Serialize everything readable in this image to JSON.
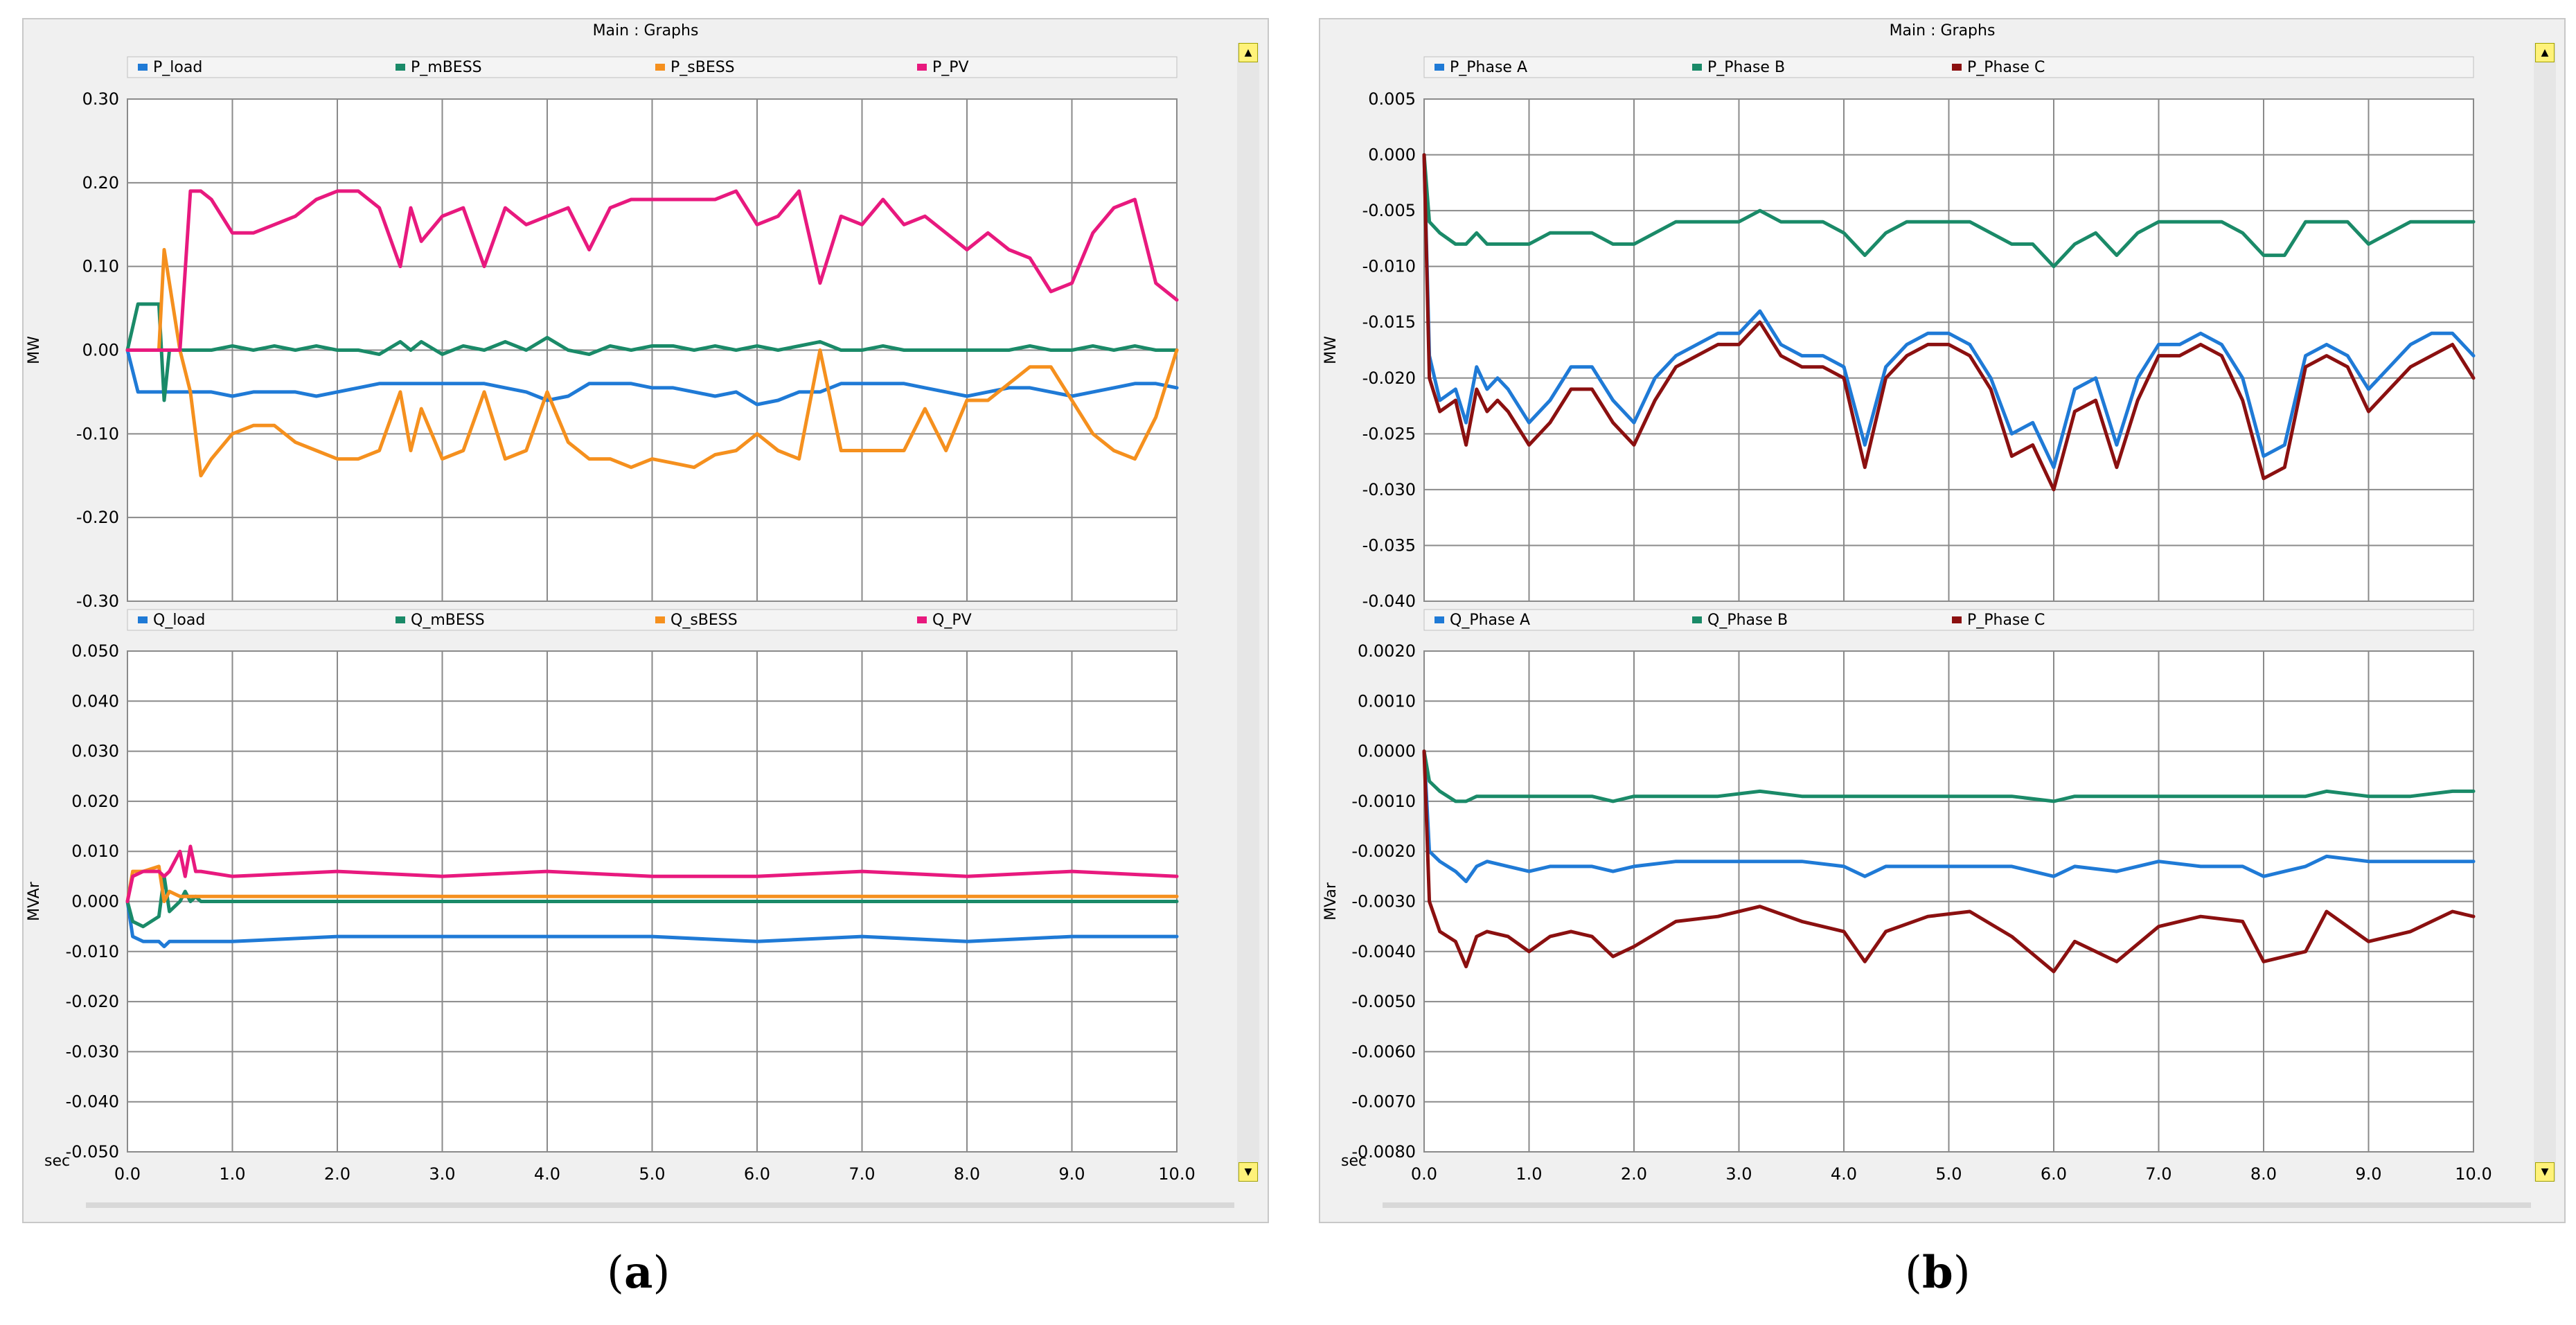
{
  "panels": [
    {
      "window_title": "Main : Graphs",
      "caption_open": "(",
      "caption_letter": "a",
      "caption_close": ")"
    },
    {
      "window_title": "Main : Graphs",
      "caption_open": "(",
      "caption_letter": "b",
      "caption_close": ")"
    }
  ],
  "chart_data": [
    {
      "panel": "a",
      "type": "line",
      "title": "",
      "ylabel": "MW",
      "xlabel": "sec",
      "xlim": [
        0,
        10
      ],
      "x_ticks": [
        "0.0",
        "1.0",
        "2.0",
        "3.0",
        "4.0",
        "5.0",
        "6.0",
        "7.0",
        "8.0",
        "9.0",
        "10.0"
      ],
      "ylim": [
        -0.3,
        0.3
      ],
      "y_ticks": [
        "0.30",
        "0.20",
        "0.10",
        "0.00",
        "-0.10",
        "-0.20",
        "-0.30"
      ],
      "grid": true,
      "x": [
        0.0,
        0.1,
        0.2,
        0.3,
        0.35,
        0.4,
        0.5,
        0.6,
        0.7,
        0.8,
        1.0,
        1.2,
        1.4,
        1.6,
        1.8,
        2.0,
        2.2,
        2.4,
        2.6,
        2.7,
        2.8,
        3.0,
        3.2,
        3.4,
        3.6,
        3.8,
        4.0,
        4.2,
        4.4,
        4.6,
        4.8,
        5.0,
        5.2,
        5.4,
        5.6,
        5.8,
        6.0,
        6.2,
        6.4,
        6.6,
        6.8,
        7.0,
        7.2,
        7.4,
        7.6,
        7.8,
        8.0,
        8.2,
        8.4,
        8.6,
        8.8,
        9.0,
        9.2,
        9.4,
        9.6,
        9.8,
        10.0
      ],
      "series": [
        {
          "name": "P_load",
          "color": "#1f7ad6",
          "values": [
            0.0,
            -0.05,
            -0.05,
            -0.05,
            -0.05,
            -0.05,
            -0.05,
            -0.05,
            -0.05,
            -0.05,
            -0.055,
            -0.05,
            -0.05,
            -0.05,
            -0.055,
            -0.05,
            -0.045,
            -0.04,
            -0.04,
            -0.04,
            -0.04,
            -0.04,
            -0.04,
            -0.04,
            -0.045,
            -0.05,
            -0.06,
            -0.055,
            -0.04,
            -0.04,
            -0.04,
            -0.045,
            -0.045,
            -0.05,
            -0.055,
            -0.05,
            -0.065,
            -0.06,
            -0.05,
            -0.05,
            -0.04,
            -0.04,
            -0.04,
            -0.04,
            -0.045,
            -0.05,
            -0.055,
            -0.05,
            -0.045,
            -0.045,
            -0.05,
            -0.055,
            -0.05,
            -0.045,
            -0.04,
            -0.04,
            -0.045
          ]
        },
        {
          "name": "P_mBESS",
          "color": "#1a8a68",
          "values": [
            0.0,
            0.055,
            0.055,
            0.055,
            -0.06,
            0.0,
            0.0,
            0.0,
            0.0,
            0.0,
            0.005,
            0.0,
            0.005,
            0.0,
            0.005,
            0.0,
            0.0,
            -0.005,
            0.01,
            0.0,
            0.01,
            -0.005,
            0.005,
            0.0,
            0.01,
            0.0,
            0.015,
            0.0,
            -0.005,
            0.005,
            0.0,
            0.005,
            0.005,
            0.0,
            0.005,
            0.0,
            0.005,
            0.0,
            0.005,
            0.01,
            0.0,
            0.0,
            0.005,
            0.0,
            0.0,
            0.0,
            0.0,
            0.0,
            0.0,
            0.005,
            0.0,
            0.0,
            0.005,
            0.0,
            0.005,
            0.0,
            0.0
          ]
        },
        {
          "name": "P_sBESS",
          "color": "#f5901e",
          "values": [
            0.0,
            0.0,
            0.0,
            0.0,
            0.12,
            0.08,
            0.0,
            -0.05,
            -0.15,
            -0.13,
            -0.1,
            -0.09,
            -0.09,
            -0.11,
            -0.12,
            -0.13,
            -0.13,
            -0.12,
            -0.05,
            -0.12,
            -0.07,
            -0.13,
            -0.12,
            -0.05,
            -0.13,
            -0.12,
            -0.05,
            -0.11,
            -0.13,
            -0.13,
            -0.14,
            -0.13,
            -0.135,
            -0.14,
            -0.125,
            -0.12,
            -0.1,
            -0.12,
            -0.13,
            0.0,
            -0.12,
            -0.12,
            -0.12,
            -0.12,
            -0.07,
            -0.12,
            -0.06,
            -0.06,
            -0.04,
            -0.02,
            -0.02,
            -0.06,
            -0.1,
            -0.12,
            -0.13,
            -0.08,
            0.0
          ]
        },
        {
          "name": "P_PV",
          "color": "#e8197e",
          "values": [
            0.0,
            0.0,
            0.0,
            0.0,
            0.0,
            0.0,
            0.0,
            0.19,
            0.19,
            0.18,
            0.14,
            0.14,
            0.15,
            0.16,
            0.18,
            0.19,
            0.19,
            0.17,
            0.1,
            0.17,
            0.13,
            0.16,
            0.17,
            0.1,
            0.17,
            0.15,
            0.16,
            0.17,
            0.12,
            0.17,
            0.18,
            0.18,
            0.18,
            0.18,
            0.18,
            0.19,
            0.15,
            0.16,
            0.19,
            0.08,
            0.16,
            0.15,
            0.18,
            0.15,
            0.16,
            0.14,
            0.12,
            0.14,
            0.12,
            0.11,
            0.07,
            0.08,
            0.14,
            0.17,
            0.18,
            0.08,
            0.06
          ]
        }
      ]
    },
    {
      "panel": "a",
      "type": "line",
      "title": "",
      "ylabel": "MVAr",
      "xlabel": "sec",
      "xlim": [
        0,
        10
      ],
      "x_ticks": [
        "0.0",
        "1.0",
        "2.0",
        "3.0",
        "4.0",
        "5.0",
        "6.0",
        "7.0",
        "8.0",
        "9.0",
        "10.0"
      ],
      "ylim": [
        -0.05,
        0.05
      ],
      "y_ticks": [
        "0.050",
        "0.040",
        "0.030",
        "0.020",
        "0.010",
        "0.000",
        "-0.010",
        "-0.020",
        "-0.030",
        "-0.040",
        "-0.050"
      ],
      "grid": true,
      "x": [
        0.0,
        0.05,
        0.15,
        0.3,
        0.35,
        0.4,
        0.5,
        0.55,
        0.6,
        0.65,
        0.7,
        1.0,
        2.0,
        3.0,
        4.0,
        5.0,
        6.0,
        7.0,
        8.0,
        9.0,
        10.0
      ],
      "series": [
        {
          "name": "Q_load",
          "color": "#1f7ad6",
          "values": [
            0.0,
            -0.007,
            -0.008,
            -0.008,
            -0.009,
            -0.008,
            -0.008,
            -0.008,
            -0.008,
            -0.008,
            -0.008,
            -0.008,
            -0.007,
            -0.007,
            -0.007,
            -0.007,
            -0.008,
            -0.007,
            -0.008,
            -0.007,
            -0.007
          ]
        },
        {
          "name": "Q_mBESS",
          "color": "#1a8a68",
          "values": [
            0.0,
            -0.004,
            -0.005,
            -0.003,
            0.005,
            -0.002,
            0.0,
            0.002,
            0.0,
            0.001,
            0.0,
            0.0,
            0.0,
            0.0,
            0.0,
            0.0,
            0.0,
            0.0,
            0.0,
            0.0,
            0.0
          ]
        },
        {
          "name": "Q_sBESS",
          "color": "#f5901e",
          "values": [
            0.0,
            0.006,
            0.006,
            0.007,
            0.0,
            0.002,
            0.001,
            0.001,
            0.001,
            0.001,
            0.001,
            0.001,
            0.001,
            0.001,
            0.001,
            0.001,
            0.001,
            0.001,
            0.001,
            0.001,
            0.001
          ]
        },
        {
          "name": "Q_PV",
          "color": "#e8197e",
          "values": [
            0.0,
            0.005,
            0.006,
            0.006,
            0.005,
            0.006,
            0.01,
            0.005,
            0.011,
            0.006,
            0.006,
            0.005,
            0.006,
            0.005,
            0.006,
            0.005,
            0.005,
            0.006,
            0.005,
            0.006,
            0.005
          ]
        }
      ]
    },
    {
      "panel": "b",
      "type": "line",
      "title": "",
      "ylabel": "MW",
      "xlabel": "sec",
      "xlim": [
        0,
        10
      ],
      "x_ticks": [
        "0.0",
        "1.0",
        "2.0",
        "3.0",
        "4.0",
        "5.0",
        "6.0",
        "7.0",
        "8.0",
        "9.0",
        "10.0"
      ],
      "ylim": [
        -0.04,
        0.005
      ],
      "y_ticks": [
        "0.005",
        "0.000",
        "-0.005",
        "-0.010",
        "-0.015",
        "-0.020",
        "-0.025",
        "-0.030",
        "-0.035",
        "-0.040"
      ],
      "grid": true,
      "x": [
        0.0,
        0.05,
        0.15,
        0.3,
        0.4,
        0.5,
        0.6,
        0.7,
        0.8,
        1.0,
        1.2,
        1.4,
        1.6,
        1.8,
        2.0,
        2.2,
        2.4,
        2.6,
        2.8,
        3.0,
        3.2,
        3.4,
        3.6,
        3.8,
        4.0,
        4.2,
        4.4,
        4.6,
        4.8,
        5.0,
        5.2,
        5.4,
        5.6,
        5.8,
        6.0,
        6.2,
        6.4,
        6.6,
        6.8,
        7.0,
        7.2,
        7.4,
        7.6,
        7.8,
        8.0,
        8.2,
        8.4,
        8.6,
        8.8,
        9.0,
        9.2,
        9.4,
        9.6,
        9.8,
        10.0
      ],
      "series": [
        {
          "name": "P_Phase A",
          "color": "#1f7ad6",
          "values": [
            0.0,
            -0.018,
            -0.022,
            -0.021,
            -0.024,
            -0.019,
            -0.021,
            -0.02,
            -0.021,
            -0.024,
            -0.022,
            -0.019,
            -0.019,
            -0.022,
            -0.024,
            -0.02,
            -0.018,
            -0.017,
            -0.016,
            -0.016,
            -0.014,
            -0.017,
            -0.018,
            -0.018,
            -0.019,
            -0.026,
            -0.019,
            -0.017,
            -0.016,
            -0.016,
            -0.017,
            -0.02,
            -0.025,
            -0.024,
            -0.028,
            -0.021,
            -0.02,
            -0.026,
            -0.02,
            -0.017,
            -0.017,
            -0.016,
            -0.017,
            -0.02,
            -0.027,
            -0.026,
            -0.018,
            -0.017,
            -0.018,
            -0.021,
            -0.019,
            -0.017,
            -0.016,
            -0.016,
            -0.018
          ]
        },
        {
          "name": "P_Phase B",
          "color": "#1a8a68",
          "values": [
            0.0,
            -0.006,
            -0.007,
            -0.008,
            -0.008,
            -0.007,
            -0.008,
            -0.008,
            -0.008,
            -0.008,
            -0.007,
            -0.007,
            -0.007,
            -0.008,
            -0.008,
            -0.007,
            -0.006,
            -0.006,
            -0.006,
            -0.006,
            -0.005,
            -0.006,
            -0.006,
            -0.006,
            -0.007,
            -0.009,
            -0.007,
            -0.006,
            -0.006,
            -0.006,
            -0.006,
            -0.007,
            -0.008,
            -0.008,
            -0.01,
            -0.008,
            -0.007,
            -0.009,
            -0.007,
            -0.006,
            -0.006,
            -0.006,
            -0.006,
            -0.007,
            -0.009,
            -0.009,
            -0.006,
            -0.006,
            -0.006,
            -0.008,
            -0.007,
            -0.006,
            -0.006,
            -0.006,
            -0.006
          ]
        },
        {
          "name": "P_Phase C",
          "color": "#8b1010",
          "values": [
            0.0,
            -0.02,
            -0.023,
            -0.022,
            -0.026,
            -0.021,
            -0.023,
            -0.022,
            -0.023,
            -0.026,
            -0.024,
            -0.021,
            -0.021,
            -0.024,
            -0.026,
            -0.022,
            -0.019,
            -0.018,
            -0.017,
            -0.017,
            -0.015,
            -0.018,
            -0.019,
            -0.019,
            -0.02,
            -0.028,
            -0.02,
            -0.018,
            -0.017,
            -0.017,
            -0.018,
            -0.021,
            -0.027,
            -0.026,
            -0.03,
            -0.023,
            -0.022,
            -0.028,
            -0.022,
            -0.018,
            -0.018,
            -0.017,
            -0.018,
            -0.022,
            -0.029,
            -0.028,
            -0.019,
            -0.018,
            -0.019,
            -0.023,
            -0.021,
            -0.019,
            -0.018,
            -0.017,
            -0.02
          ]
        }
      ]
    },
    {
      "panel": "b",
      "type": "line",
      "title": "",
      "ylabel": "MVar",
      "xlabel": "sec",
      "xlim": [
        0,
        10
      ],
      "x_ticks": [
        "0.0",
        "1.0",
        "2.0",
        "3.0",
        "4.0",
        "5.0",
        "6.0",
        "7.0",
        "8.0",
        "9.0",
        "10.0"
      ],
      "ylim": [
        -0.008,
        0.002
      ],
      "y_ticks": [
        "0.0020",
        "0.0010",
        "0.0000",
        "-0.0010",
        "-0.0020",
        "-0.0030",
        "-0.0040",
        "-0.0050",
        "-0.0060",
        "-0.0070",
        "-0.0080"
      ],
      "grid": true,
      "x": [
        0.0,
        0.05,
        0.15,
        0.3,
        0.4,
        0.5,
        0.6,
        0.8,
        1.0,
        1.2,
        1.4,
        1.6,
        1.8,
        2.0,
        2.4,
        2.8,
        3.2,
        3.6,
        4.0,
        4.2,
        4.4,
        4.8,
        5.2,
        5.6,
        6.0,
        6.2,
        6.6,
        7.0,
        7.4,
        7.8,
        8.0,
        8.4,
        8.6,
        9.0,
        9.4,
        9.8,
        10.0
      ],
      "series": [
        {
          "name": "Q_Phase A",
          "color": "#1f7ad6",
          "values": [
            0.0,
            -0.002,
            -0.0022,
            -0.0024,
            -0.0026,
            -0.0023,
            -0.0022,
            -0.0023,
            -0.0024,
            -0.0023,
            -0.0023,
            -0.0023,
            -0.0024,
            -0.0023,
            -0.0022,
            -0.0022,
            -0.0022,
            -0.0022,
            -0.0023,
            -0.0025,
            -0.0023,
            -0.0023,
            -0.0023,
            -0.0023,
            -0.0025,
            -0.0023,
            -0.0024,
            -0.0022,
            -0.0023,
            -0.0023,
            -0.0025,
            -0.0023,
            -0.0021,
            -0.0022,
            -0.0022,
            -0.0022,
            -0.0022
          ]
        },
        {
          "name": "Q_Phase B",
          "color": "#1a8a68",
          "values": [
            0.0,
            -0.0006,
            -0.0008,
            -0.001,
            -0.001,
            -0.0009,
            -0.0009,
            -0.0009,
            -0.0009,
            -0.0009,
            -0.0009,
            -0.0009,
            -0.001,
            -0.0009,
            -0.0009,
            -0.0009,
            -0.0008,
            -0.0009,
            -0.0009,
            -0.0009,
            -0.0009,
            -0.0009,
            -0.0009,
            -0.0009,
            -0.001,
            -0.0009,
            -0.0009,
            -0.0009,
            -0.0009,
            -0.0009,
            -0.0009,
            -0.0009,
            -0.0008,
            -0.0009,
            -0.0009,
            -0.0008,
            -0.0008
          ]
        },
        {
          "name": "P_Phase C",
          "color": "#8b1010",
          "values": [
            0.0,
            -0.003,
            -0.0036,
            -0.0038,
            -0.0043,
            -0.0037,
            -0.0036,
            -0.0037,
            -0.004,
            -0.0037,
            -0.0036,
            -0.0037,
            -0.0041,
            -0.0039,
            -0.0034,
            -0.0033,
            -0.0031,
            -0.0034,
            -0.0036,
            -0.0042,
            -0.0036,
            -0.0033,
            -0.0032,
            -0.0037,
            -0.0044,
            -0.0038,
            -0.0042,
            -0.0035,
            -0.0033,
            -0.0034,
            -0.0042,
            -0.004,
            -0.0032,
            -0.0038,
            -0.0036,
            -0.0032,
            -0.0033
          ]
        }
      ]
    }
  ]
}
